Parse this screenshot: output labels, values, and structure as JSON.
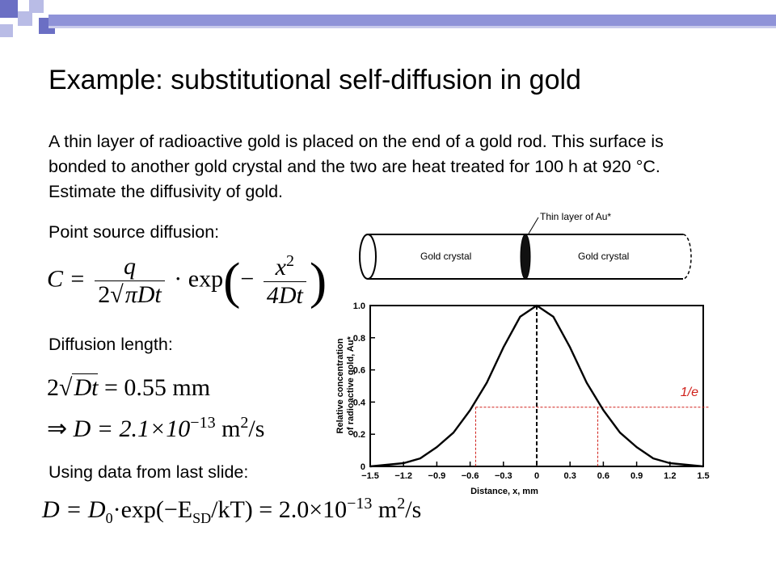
{
  "slide": {
    "title": "Example: substitutional self-diffusion in gold",
    "paragraph": "A thin layer of radioactive gold is placed on the end of a gold rod. This surface is bonded to another gold crystal and the two are heat treated for 100 h at 920 °C. Estimate the diffusivity of gold.",
    "label_point_source": "Point source diffusion:",
    "label_diffusion_length": "Diffusion length:",
    "label_using_data": "Using data from last slide:"
  },
  "equations": {
    "eq1": {
      "lhs": "C =",
      "num": "q",
      "den_coef": "2",
      "den_sqrt": "πDt",
      "dot": "·",
      "fn": "exp",
      "minus": "−",
      "inner_num": "x",
      "inner_exp": "2",
      "inner_den": "4Dt"
    },
    "eq2": {
      "coef": "2",
      "sqrt": "Dt",
      "rhs": "= 0.55 mm"
    },
    "eq3": {
      "implies": "⇒",
      "lhs": "D = 2.1×10",
      "exp": "−13",
      "unit": "m",
      "unit_exp": "2",
      "unit_tail": "/s"
    },
    "eq4": {
      "lhs": "D = D",
      "sub0": "0",
      "mid": "·exp(−E",
      "sub_sd": "SD",
      "tail": "/kT) = 2.0×10",
      "exp": "−13",
      "unit": "m",
      "unit_exp": "2",
      "unit_tail": "/s"
    }
  },
  "rod": {
    "left_label": "Gold crystal",
    "right_label": "Gold crystal",
    "thin_layer_label": "Thin layer of Au*"
  },
  "chart_data": {
    "type": "line",
    "title": "",
    "xlabel": "Distance, x, mm",
    "ylabel_line1": "Relative concentration",
    "ylabel_line2": "of radioactive gold, Au*",
    "xlim": [
      -1.5,
      1.5
    ],
    "ylim": [
      0,
      1.0
    ],
    "x_ticks": [
      "−1.5",
      "−1.2",
      "−0.9",
      "−0.6",
      "−0.3",
      "0",
      "0.3",
      "0.6",
      "0.9",
      "1.2",
      "1.5"
    ],
    "x_tick_values": [
      -1.5,
      -1.2,
      -0.9,
      -0.6,
      -0.3,
      0,
      0.3,
      0.6,
      0.9,
      1.2,
      1.5
    ],
    "y_ticks": [
      "0",
      "0.2",
      "0.4",
      "0.6",
      "0.8",
      "1.0"
    ],
    "y_tick_values": [
      0,
      0.2,
      0.4,
      0.6,
      0.8,
      1.0
    ],
    "series": [
      {
        "x": [
          -1.5,
          -1.35,
          -1.2,
          -1.05,
          -0.9,
          -0.75,
          -0.6,
          -0.45,
          -0.3,
          -0.15,
          0,
          0.15,
          0.3,
          0.45,
          0.6,
          0.75,
          0.9,
          1.05,
          1.2,
          1.35,
          1.5
        ],
        "y": [
          0.0,
          0.01,
          0.02,
          0.05,
          0.12,
          0.21,
          0.35,
          0.52,
          0.74,
          0.93,
          1.0,
          0.93,
          0.74,
          0.52,
          0.35,
          0.21,
          0.12,
          0.05,
          0.02,
          0.01,
          0.0
        ]
      }
    ],
    "annotation": {
      "label": "1/e",
      "y": 0.368,
      "x_left": -0.55,
      "x_right": 0.55
    },
    "colors": {
      "curve": "#000000",
      "annotation": "#d0201a"
    }
  },
  "colors": {
    "deco_blue": "#6b6fc4",
    "deco_light": "#b9bce6",
    "rule": "#8f93d8"
  }
}
